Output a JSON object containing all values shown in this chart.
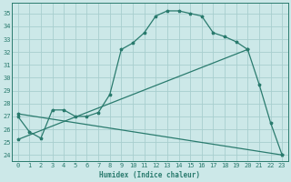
{
  "line1_x": [
    0,
    1,
    2,
    3,
    4,
    5,
    6,
    7,
    8,
    9,
    10,
    11,
    12,
    13,
    14,
    15,
    16,
    17,
    18,
    19,
    20,
    21,
    22,
    23
  ],
  "line1_y": [
    27.0,
    25.8,
    25.3,
    27.5,
    27.5,
    27.0,
    27.0,
    27.3,
    28.7,
    32.2,
    32.7,
    33.5,
    34.8,
    35.2,
    35.2,
    35.0,
    34.8,
    33.5,
    33.2,
    32.8,
    32.2,
    29.5,
    26.5,
    24.0
  ],
  "line2_x": [
    0,
    23
  ],
  "line2_y": [
    27.2,
    24.0
  ],
  "line3_x": [
    0,
    20
  ],
  "line3_y": [
    25.2,
    32.2
  ],
  "color": "#2a7b6e",
  "bg_color": "#cce8e8",
  "grid_color": "#a8cece",
  "xlabel": "Humidex (Indice chaleur)",
  "ylim": [
    23.5,
    35.8
  ],
  "xlim": [
    -0.5,
    23.5
  ],
  "yticks": [
    24,
    25,
    26,
    27,
    28,
    29,
    30,
    31,
    32,
    33,
    34,
    35
  ],
  "xticks": [
    0,
    1,
    2,
    3,
    4,
    5,
    6,
    7,
    8,
    9,
    10,
    11,
    12,
    13,
    14,
    15,
    16,
    17,
    18,
    19,
    20,
    21,
    22,
    23
  ]
}
